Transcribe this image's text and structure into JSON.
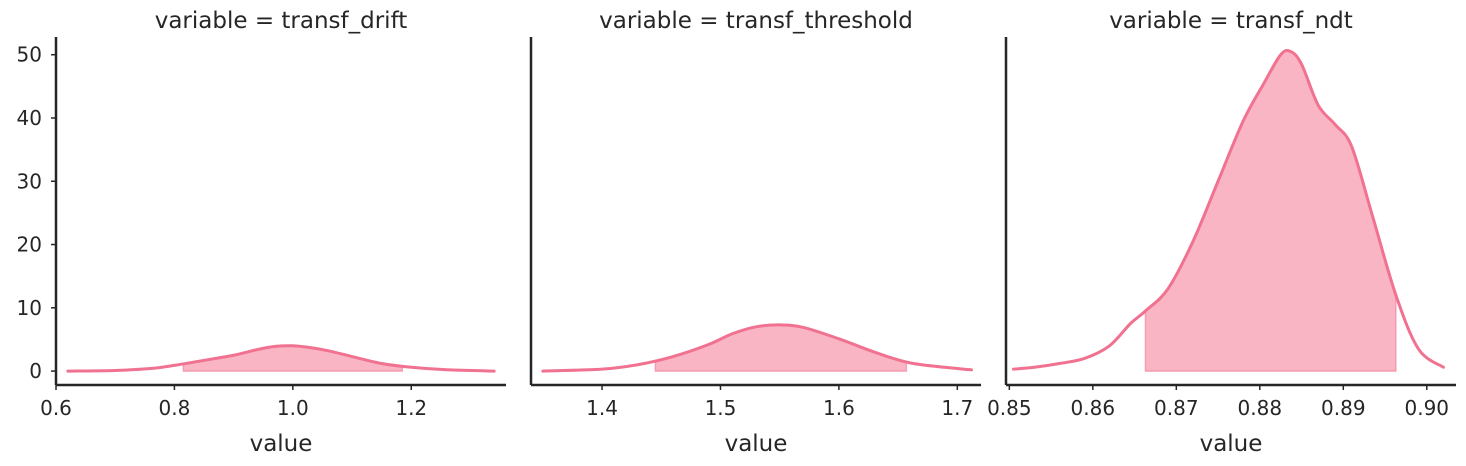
{
  "chart_data": [
    {
      "type": "area",
      "title": "variable = transf_drift",
      "xlabel": "value",
      "ylabel": "",
      "xlim": [
        0.6,
        1.36
      ],
      "ylim": [
        -2.2,
        52.8
      ],
      "xticks": [
        0.6,
        0.8,
        1.0,
        1.2
      ],
      "yticks": [
        0,
        10,
        20,
        30,
        40,
        50
      ],
      "show_yaxis": true,
      "line_color": "#f07290",
      "fill_color": "#f9b5c3",
      "shaded_interval": [
        0.815,
        1.185
      ],
      "curve": {
        "x": [
          0.62,
          0.7,
          0.76,
          0.8,
          0.85,
          0.9,
          0.94,
          0.97,
          1.0,
          1.03,
          1.06,
          1.1,
          1.15,
          1.2,
          1.26,
          1.34
        ],
        "y": [
          0.0,
          0.1,
          0.4,
          0.9,
          1.7,
          2.5,
          3.4,
          3.9,
          4.0,
          3.7,
          3.2,
          2.3,
          1.2,
          0.6,
          0.2,
          0.0
        ]
      }
    },
    {
      "type": "area",
      "title": "variable = transf_threshold",
      "xlabel": "value",
      "ylabel": "",
      "xlim": [
        1.34,
        1.72
      ],
      "ylim": [
        -2.2,
        52.8
      ],
      "xticks": [
        1.4,
        1.5,
        1.6,
        1.7
      ],
      "yticks": [
        0,
        10,
        20,
        30,
        40,
        50
      ],
      "show_yaxis": false,
      "line_color": "#f07290",
      "fill_color": "#f9b5c3",
      "shaded_interval": [
        1.445,
        1.657
      ],
      "curve": {
        "x": [
          1.35,
          1.4,
          1.43,
          1.46,
          1.49,
          1.51,
          1.53,
          1.55,
          1.57,
          1.6,
          1.63,
          1.66,
          1.7,
          1.712
        ],
        "y": [
          0.0,
          0.3,
          1.0,
          2.3,
          4.2,
          5.9,
          7.0,
          7.3,
          6.9,
          5.1,
          3.0,
          1.3,
          0.4,
          0.2
        ]
      }
    },
    {
      "type": "area",
      "title": "variable = transf_ndt",
      "xlabel": "value",
      "ylabel": "",
      "xlim": [
        0.8496,
        0.9035
      ],
      "ylim": [
        -2.2,
        52.8
      ],
      "xticks": [
        0.85,
        0.86,
        0.87,
        0.88,
        0.89,
        0.9
      ],
      "yticks": [
        0,
        10,
        20,
        30,
        40,
        50
      ],
      "show_yaxis": false,
      "line_color": "#f07290",
      "fill_color": "#f9b5c3",
      "shaded_interval": [
        0.8663,
        0.8963
      ],
      "curve": {
        "x": [
          0.8505,
          0.853,
          0.856,
          0.859,
          0.862,
          0.8645,
          0.8663,
          0.869,
          0.872,
          0.875,
          0.878,
          0.8805,
          0.8825,
          0.8837,
          0.885,
          0.887,
          0.889,
          0.891,
          0.8935,
          0.8963,
          0.899,
          0.902
        ],
        "y": [
          0.3,
          0.6,
          1.2,
          2.0,
          4.0,
          7.5,
          9.5,
          13.0,
          20.5,
          30.0,
          39.5,
          45.5,
          50.0,
          50.5,
          48.5,
          42.0,
          39.0,
          35.5,
          24.5,
          12.0,
          3.5,
          0.6
        ]
      }
    }
  ]
}
